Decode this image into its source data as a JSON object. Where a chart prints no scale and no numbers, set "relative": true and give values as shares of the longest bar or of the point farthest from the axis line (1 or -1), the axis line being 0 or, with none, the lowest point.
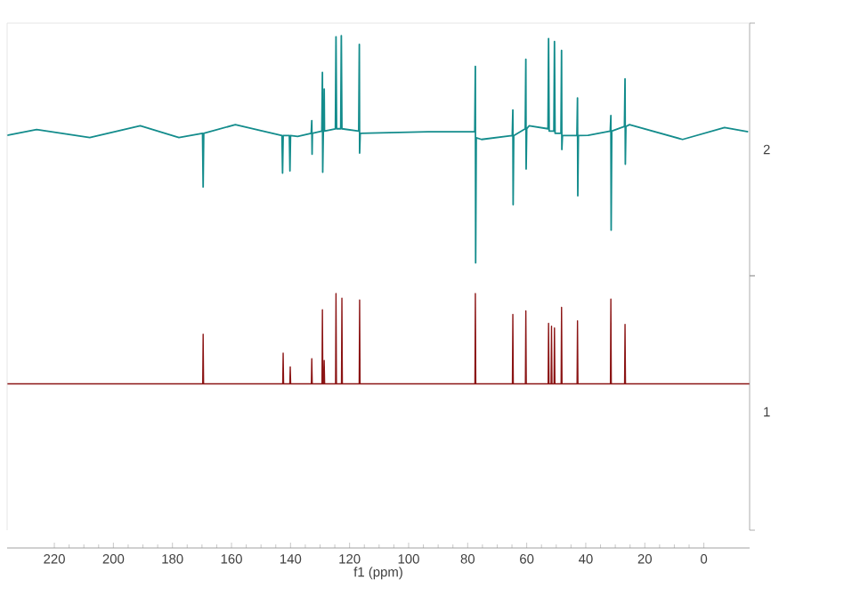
{
  "chart_data": [
    {
      "type": "line",
      "relative": true,
      "xlim": [
        236,
        -15.5
      ],
      "tick_labels": false,
      "series": [
        {
          "name": "2",
          "color": "#138c8c",
          "x": [
            236,
            226,
            208,
            190.9,
            177.8,
            169.8,
            169.6,
            169.4,
            158.7,
            142.9,
            142.7,
            142.5,
            140.4,
            140.2,
            140.0,
            137.6,
            133.0,
            132.8,
            132.7,
            132.6,
            129.4,
            129.2,
            129.1,
            128.9,
            128.7,
            128.6,
            128.5,
            124.8,
            124.6,
            124.4,
            123.0,
            122.8,
            122.6,
            116.9,
            116.7,
            116.6,
            116.4,
            93.4,
            79.4,
            77.6,
            77.4,
            77.3,
            77.1,
            75.3,
            64.9,
            64.7,
            64.6,
            64.4,
            60.5,
            60.3,
            60.2,
            60.0,
            59.2,
            52.8,
            52.6,
            52.4,
            50.8,
            50.6,
            50.4,
            48.4,
            48.2,
            48.1,
            47.9,
            43.0,
            42.8,
            42.7,
            42.5,
            39.2,
            31.7,
            31.5,
            31.4,
            31.2,
            26.9,
            26.7,
            26.6,
            26.4,
            25.2,
            7.2,
            -7,
            -15
          ],
          "values": [
            0.561,
            0.587,
            0.551,
            0.603,
            0.551,
            0.57,
            0.334,
            0.57,
            0.608,
            0.56,
            0.395,
            0.56,
            0.56,
            0.405,
            0.56,
            0.556,
            0.57,
            0.626,
            0.478,
            0.57,
            0.58,
            0.838,
            0.399,
            0.58,
            0.58,
            0.765,
            0.58,
            0.59,
            0.995,
            0.59,
            0.59,
            1.0,
            0.59,
            0.58,
            0.961,
            0.483,
            0.57,
            0.577,
            0.577,
            0.577,
            0.865,
            0,
            0.55,
            0.543,
            0.56,
            0.673,
            0.256,
            0.56,
            0.59,
            0.896,
            0.413,
            0.59,
            0.603,
            0.59,
            0.987,
            0.58,
            0.58,
            0.974,
            0.57,
            0.57,
            0.935,
            0.499,
            0.56,
            0.56,
            0.726,
            0.295,
            0.56,
            0.561,
            0.58,
            0.648,
            0.144,
            0.58,
            0.6,
            0.81,
            0.434,
            0.6,
            0.608,
            0.543,
            0.595,
            0.577
          ]
        }
      ]
    },
    {
      "type": "line",
      "relative": true,
      "xlim": [
        236,
        -15.5
      ],
      "xticks": [
        220,
        200,
        180,
        160,
        140,
        120,
        100,
        80,
        60,
        40,
        20,
        0
      ],
      "xlabel": "f1 (ppm)",
      "tick_labels": "x",
      "series": [
        {
          "name": "1",
          "color": "#8b1414",
          "x": [
            236,
            169.75,
            169.6,
            169.45,
            142.65,
            142.5,
            142.35,
            140.25,
            140.1,
            139.95,
            132.95,
            132.8,
            132.65,
            129.35,
            129.2,
            129.05,
            128.75,
            128.6,
            128.45,
            124.75,
            124.6,
            124.45,
            122.75,
            122.6,
            122.45,
            116.75,
            116.6,
            116.45,
            77.55,
            77.4,
            77.25,
            64.85,
            64.7,
            64.55,
            60.45,
            60.3,
            60.15,
            52.75,
            52.6,
            52.45,
            51.75,
            51.6,
            51.45,
            50.75,
            50.6,
            50.45,
            48.35,
            48.2,
            48.05,
            42.95,
            42.8,
            42.65,
            31.65,
            31.5,
            31.35,
            26.85,
            26.7,
            26.55,
            -15.5
          ],
          "values": [
            0.645,
            0.645,
            0.84,
            0.645,
            0.645,
            0.766,
            0.645,
            0.645,
            0.712,
            0.645,
            0.645,
            0.744,
            0.645,
            0.645,
            0.936,
            0.645,
            0.645,
            0.737,
            0.645,
            0.645,
            1.0,
            0.645,
            0.645,
            0.982,
            0.645,
            0.645,
            0.975,
            0.645,
            0.645,
            1.0,
            0.645,
            0.645,
            0.918,
            0.645,
            0.645,
            0.932,
            0.645,
            0.645,
            0.883,
            0.645,
            0.645,
            0.872,
            0.645,
            0.645,
            0.865,
            0.645,
            0.645,
            0.946,
            0.645,
            0.645,
            0.893,
            0.645,
            0.645,
            0.978,
            0.645,
            0.645,
            0.879,
            0.645,
            0.645
          ]
        }
      ]
    }
  ]
}
